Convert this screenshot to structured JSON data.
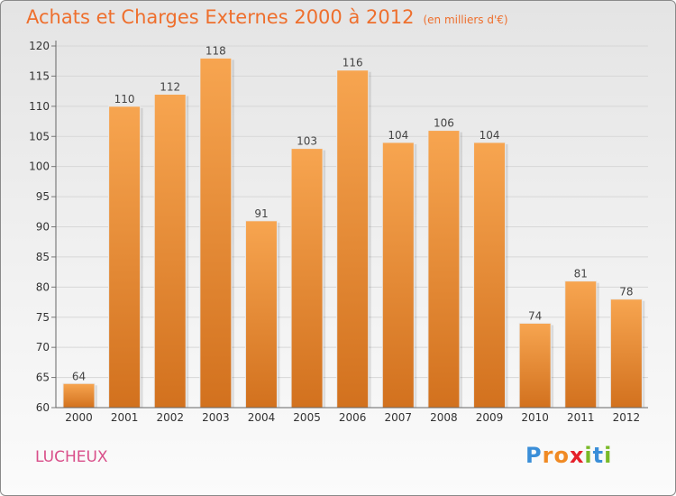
{
  "chart_data": {
    "type": "bar",
    "title": "Achats et Charges Externes 2000 à 2012",
    "subtitle": "(en milliers d'€)",
    "categories": [
      "2000",
      "2001",
      "2002",
      "2003",
      "2004",
      "2005",
      "2006",
      "2007",
      "2008",
      "2009",
      "2010",
      "2011",
      "2012"
    ],
    "values": [
      64,
      110,
      112,
      118,
      91,
      103,
      116,
      104,
      106,
      104,
      74,
      81,
      78
    ],
    "ylim": [
      60,
      120
    ],
    "yticks": [
      60,
      65,
      70,
      75,
      80,
      85,
      90,
      95,
      100,
      105,
      110,
      115,
      120
    ],
    "grid": true,
    "bar_color_top": "#f7a550",
    "bar_color_bottom": "#d2711e"
  },
  "location": "LUCHEUX",
  "logo": {
    "letters": [
      "P",
      "r",
      "o",
      "x",
      "i",
      "t",
      "i"
    ],
    "colors": [
      "#3a8ed8",
      "#f08a24",
      "#f08a24",
      "#e5202a",
      "#7ab929",
      "#3a8ed8",
      "#7ab929"
    ]
  }
}
